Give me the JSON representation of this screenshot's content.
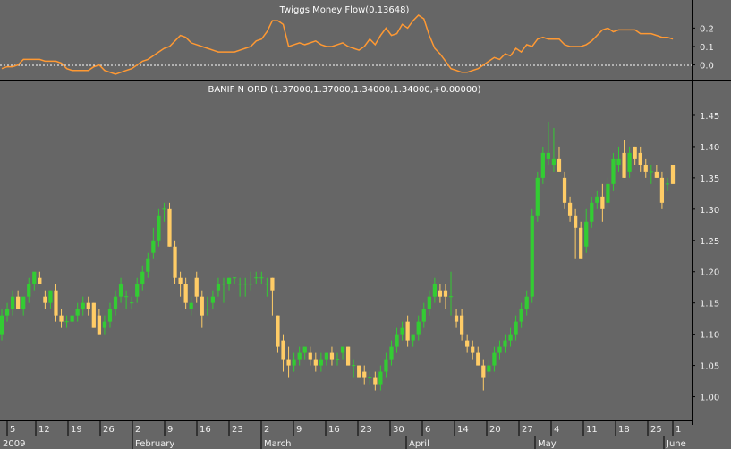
{
  "colors": {
    "background": "#666666",
    "up": "#33cc33",
    "down": "#ffcc66",
    "indicator": "#ff9933",
    "separator": "#000000",
    "axis_text": "#f0f0f0"
  },
  "chart_data": [
    {
      "type": "line",
      "title": "Twiggs Money Flow(0.13648)",
      "ylim": [
        -0.075,
        0.265
      ],
      "yticks": [
        "0.2",
        "0.1",
        "0.0"
      ],
      "ytick_values": [
        0.2,
        0.1,
        0.0
      ],
      "reference_line": 0.0,
      "series": [
        {
          "values": [
            -0.02,
            -0.01,
            -0.01,
            0.0,
            0.03,
            0.03,
            0.03,
            0.03,
            0.02,
            0.02,
            0.02,
            0.01,
            -0.02,
            -0.03,
            -0.03,
            -0.03,
            -0.03,
            -0.01,
            0.0,
            -0.03,
            -0.04,
            -0.05,
            -0.04,
            -0.03,
            -0.02,
            0.0,
            0.02,
            0.03,
            0.05,
            0.07,
            0.09,
            0.1,
            0.13,
            0.16,
            0.15,
            0.12,
            0.11,
            0.1,
            0.09,
            0.08,
            0.07,
            0.07,
            0.07,
            0.07,
            0.08,
            0.09,
            0.1,
            0.13,
            0.14,
            0.18,
            0.24,
            0.24,
            0.22,
            0.1,
            0.11,
            0.12,
            0.11,
            0.12,
            0.13,
            0.11,
            0.1,
            0.1,
            0.11,
            0.12,
            0.1,
            0.09,
            0.08,
            0.1,
            0.14,
            0.11,
            0.16,
            0.2,
            0.16,
            0.17,
            0.22,
            0.2,
            0.24,
            0.27,
            0.25,
            0.16,
            0.09,
            0.06,
            0.02,
            -0.02,
            -0.03,
            -0.04,
            -0.04,
            -0.03,
            -0.02,
            0.0,
            0.02,
            0.04,
            0.03,
            0.06,
            0.05,
            0.09,
            0.07,
            0.11,
            0.1,
            0.14,
            0.15,
            0.14,
            0.14,
            0.14,
            0.11,
            0.1,
            0.1,
            0.1,
            0.11,
            0.13,
            0.16,
            0.19,
            0.2,
            0.18,
            0.19,
            0.19,
            0.19,
            0.19,
            0.17,
            0.17,
            0.17,
            0.16,
            0.15,
            0.15,
            0.14
          ],
          "color": "#ff9933"
        }
      ]
    },
    {
      "type": "candlestick",
      "title": "BANIF N ORD (1.37000,1.37000,1.34000,1.34000,+0.00000)",
      "ylim": [
        0.965,
        1.48
      ],
      "yticks": [
        "1.45",
        "1.40",
        "1.35",
        "1.30",
        "1.25",
        "1.20",
        "1.15",
        "1.10",
        "1.05",
        "1.00"
      ],
      "ytick_values": [
        1.45,
        1.4,
        1.35,
        1.3,
        1.25,
        1.2,
        1.15,
        1.1,
        1.05,
        1.0
      ],
      "x_day_labels": [
        "5",
        "12",
        "19",
        "26",
        "2",
        "9",
        "16",
        "23",
        "2",
        "9",
        "16",
        "23",
        "30",
        "6",
        "14",
        "20",
        "27",
        "4",
        "11",
        "18",
        "25",
        "1"
      ],
      "x_month_labels": [
        "2009",
        "February",
        "March",
        "April",
        "May",
        "June"
      ],
      "series": [
        {
          "name": "",
          "points": [
            [
              1.1,
              1.14,
              1.09,
              1.13
            ],
            [
              1.13,
              1.15,
              1.12,
              1.14
            ],
            [
              1.14,
              1.17,
              1.13,
              1.16
            ],
            [
              1.16,
              1.17,
              1.14,
              1.14
            ],
            [
              1.14,
              1.16,
              1.13,
              1.16
            ],
            [
              1.16,
              1.19,
              1.15,
              1.18
            ],
            [
              1.18,
              1.2,
              1.17,
              1.2
            ],
            [
              1.19,
              1.2,
              1.18,
              1.18
            ],
            [
              1.16,
              1.17,
              1.14,
              1.15
            ],
            [
              1.15,
              1.17,
              1.14,
              1.17
            ],
            [
              1.17,
              1.18,
              1.12,
              1.13
            ],
            [
              1.13,
              1.14,
              1.11,
              1.12
            ],
            [
              1.12,
              1.13,
              1.11,
              1.12
            ],
            [
              1.12,
              1.13,
              1.12,
              1.13
            ],
            [
              1.13,
              1.15,
              1.12,
              1.14
            ],
            [
              1.14,
              1.16,
              1.13,
              1.15
            ],
            [
              1.15,
              1.16,
              1.13,
              1.14
            ],
            [
              1.15,
              1.15,
              1.11,
              1.11
            ],
            [
              1.13,
              1.14,
              1.1,
              1.1
            ],
            [
              1.11,
              1.13,
              1.1,
              1.12
            ],
            [
              1.12,
              1.15,
              1.11,
              1.14
            ],
            [
              1.14,
              1.17,
              1.13,
              1.16
            ],
            [
              1.16,
              1.19,
              1.15,
              1.18
            ],
            [
              1.16,
              1.17,
              1.14,
              1.16
            ],
            [
              1.15,
              1.16,
              1.14,
              1.15
            ],
            [
              1.16,
              1.19,
              1.15,
              1.18
            ],
            [
              1.18,
              1.21,
              1.17,
              1.2
            ],
            [
              1.2,
              1.23,
              1.19,
              1.22
            ],
            [
              1.23,
              1.27,
              1.22,
              1.25
            ],
            [
              1.25,
              1.3,
              1.24,
              1.29
            ],
            [
              1.3,
              1.31,
              1.28,
              1.3
            ],
            [
              1.3,
              1.31,
              1.24,
              1.24
            ],
            [
              1.24,
              1.25,
              1.18,
              1.19
            ],
            [
              1.19,
              1.2,
              1.16,
              1.18
            ],
            [
              1.18,
              1.19,
              1.14,
              1.15
            ],
            [
              1.14,
              1.16,
              1.13,
              1.15
            ],
            [
              1.19,
              1.2,
              1.15,
              1.16
            ],
            [
              1.16,
              1.17,
              1.11,
              1.13
            ],
            [
              1.14,
              1.16,
              1.13,
              1.14
            ],
            [
              1.15,
              1.17,
              1.14,
              1.16
            ],
            [
              1.17,
              1.19,
              1.16,
              1.18
            ],
            [
              1.18,
              1.19,
              1.15,
              1.18
            ],
            [
              1.18,
              1.19,
              1.17,
              1.19
            ],
            [
              1.19,
              1.19,
              1.18,
              1.19
            ],
            [
              1.18,
              1.19,
              1.16,
              1.18
            ],
            [
              1.18,
              1.19,
              1.16,
              1.18
            ],
            [
              1.18,
              1.2,
              1.17,
              1.18
            ],
            [
              1.19,
              1.2,
              1.18,
              1.19
            ],
            [
              1.19,
              1.2,
              1.18,
              1.19
            ],
            [
              1.18,
              1.19,
              1.16,
              1.18
            ],
            [
              1.19,
              1.19,
              1.13,
              1.17
            ],
            [
              1.13,
              1.13,
              1.07,
              1.08
            ],
            [
              1.09,
              1.1,
              1.04,
              1.06
            ],
            [
              1.06,
              1.08,
              1.03,
              1.05
            ],
            [
              1.05,
              1.07,
              1.04,
              1.06
            ],
            [
              1.06,
              1.08,
              1.05,
              1.07
            ],
            [
              1.07,
              1.08,
              1.06,
              1.08
            ],
            [
              1.07,
              1.08,
              1.05,
              1.06
            ],
            [
              1.06,
              1.07,
              1.04,
              1.05
            ],
            [
              1.05,
              1.07,
              1.04,
              1.06
            ],
            [
              1.06,
              1.07,
              1.05,
              1.07
            ],
            [
              1.07,
              1.08,
              1.05,
              1.06
            ],
            [
              1.06,
              1.07,
              1.05,
              1.06
            ],
            [
              1.07,
              1.08,
              1.06,
              1.08
            ],
            [
              1.08,
              1.08,
              1.05,
              1.05
            ],
            [
              1.05,
              1.06,
              1.03,
              1.05
            ],
            [
              1.05,
              1.05,
              1.03,
              1.03
            ],
            [
              1.04,
              1.05,
              1.02,
              1.03
            ],
            [
              1.03,
              1.04,
              1.02,
              1.03
            ],
            [
              1.03,
              1.04,
              1.01,
              1.02
            ],
            [
              1.02,
              1.05,
              1.01,
              1.04
            ],
            [
              1.04,
              1.07,
              1.03,
              1.06
            ],
            [
              1.06,
              1.09,
              1.05,
              1.08
            ],
            [
              1.08,
              1.11,
              1.07,
              1.1
            ],
            [
              1.1,
              1.12,
              1.09,
              1.11
            ],
            [
              1.12,
              1.13,
              1.08,
              1.09
            ],
            [
              1.09,
              1.1,
              1.08,
              1.1
            ],
            [
              1.1,
              1.13,
              1.09,
              1.12
            ],
            [
              1.12,
              1.15,
              1.11,
              1.14
            ],
            [
              1.14,
              1.17,
              1.13,
              1.16
            ],
            [
              1.16,
              1.19,
              1.15,
              1.18
            ],
            [
              1.17,
              1.18,
              1.15,
              1.16
            ],
            [
              1.17,
              1.18,
              1.14,
              1.16
            ],
            [
              1.16,
              1.2,
              1.13,
              1.16
            ],
            [
              1.13,
              1.14,
              1.11,
              1.12
            ],
            [
              1.13,
              1.14,
              1.09,
              1.1
            ],
            [
              1.09,
              1.1,
              1.07,
              1.08
            ],
            [
              1.08,
              1.09,
              1.06,
              1.07
            ],
            [
              1.07,
              1.08,
              1.05,
              1.05
            ],
            [
              1.05,
              1.06,
              1.01,
              1.03
            ],
            [
              1.04,
              1.06,
              1.03,
              1.05
            ],
            [
              1.05,
              1.08,
              1.04,
              1.07
            ],
            [
              1.07,
              1.09,
              1.06,
              1.08
            ],
            [
              1.08,
              1.1,
              1.07,
              1.09
            ],
            [
              1.09,
              1.11,
              1.08,
              1.1
            ],
            [
              1.1,
              1.13,
              1.09,
              1.12
            ],
            [
              1.12,
              1.15,
              1.11,
              1.14
            ],
            [
              1.14,
              1.17,
              1.13,
              1.16
            ],
            [
              1.16,
              1.3,
              1.15,
              1.29
            ],
            [
              1.29,
              1.36,
              1.28,
              1.35
            ],
            [
              1.35,
              1.4,
              1.34,
              1.39
            ],
            [
              1.38,
              1.44,
              1.37,
              1.39
            ],
            [
              1.37,
              1.43,
              1.36,
              1.38
            ],
            [
              1.38,
              1.4,
              1.36,
              1.36
            ],
            [
              1.35,
              1.36,
              1.3,
              1.31
            ],
            [
              1.31,
              1.32,
              1.28,
              1.29
            ],
            [
              1.29,
              1.3,
              1.22,
              1.27
            ],
            [
              1.27,
              1.28,
              1.22,
              1.22
            ],
            [
              1.24,
              1.3,
              1.23,
              1.28
            ],
            [
              1.28,
              1.32,
              1.27,
              1.31
            ],
            [
              1.31,
              1.33,
              1.3,
              1.32
            ],
            [
              1.32,
              1.34,
              1.28,
              1.3
            ],
            [
              1.31,
              1.35,
              1.3,
              1.34
            ],
            [
              1.34,
              1.39,
              1.33,
              1.38
            ],
            [
              1.37,
              1.4,
              1.36,
              1.38
            ],
            [
              1.39,
              1.41,
              1.35,
              1.35
            ],
            [
              1.36,
              1.4,
              1.35,
              1.39
            ],
            [
              1.4,
              1.4,
              1.37,
              1.38
            ],
            [
              1.39,
              1.4,
              1.36,
              1.37
            ],
            [
              1.37,
              1.38,
              1.35,
              1.36
            ],
            [
              1.36,
              1.37,
              1.34,
              1.36
            ],
            [
              1.36,
              1.37,
              1.35,
              1.35
            ],
            [
              1.35,
              1.36,
              1.3,
              1.31
            ],
            [
              1.34,
              1.35,
              1.33,
              1.34
            ],
            [
              1.37,
              1.37,
              1.34,
              1.34
            ]
          ]
        }
      ]
    }
  ]
}
